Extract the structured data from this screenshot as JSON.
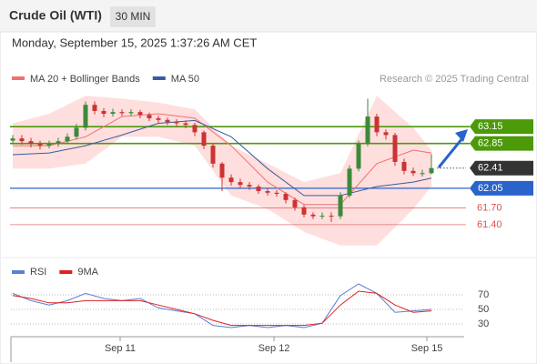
{
  "header": {
    "title": "Crude Oil (WTI)",
    "timeframe": "30 MIN",
    "timestamp": "Monday, September 15, 2025 1:37:26 AM CET"
  },
  "chart_data": [
    {
      "type": "candlestick",
      "source": "Research © 2025 Trading Central",
      "up_color": "#3b8a3b",
      "down_color": "#cc3333",
      "x": [
        0,
        1,
        2,
        3,
        4,
        5,
        6,
        7,
        8,
        9,
        10,
        11,
        12,
        13,
        14,
        15,
        16,
        17,
        18,
        19,
        20,
        21,
        22,
        23,
        24,
        25,
        26,
        27,
        28,
        29,
        30,
        31,
        32,
        33,
        34,
        35,
        36,
        37,
        38,
        39,
        40,
        41,
        42,
        43,
        44,
        45,
        46
      ],
      "open": [
        62.9,
        62.94,
        62.89,
        62.84,
        62.81,
        62.84,
        62.89,
        62.97,
        63.13,
        63.54,
        63.43,
        63.38,
        63.41,
        63.39,
        63.41,
        63.36,
        63.3,
        63.27,
        63.23,
        63.21,
        63.18,
        63.05,
        62.81,
        62.49,
        62.24,
        62.16,
        62.11,
        62.08,
        62.0,
        61.97,
        61.95,
        61.84,
        61.71,
        61.58,
        61.55,
        61.56,
        61.55,
        61.92,
        62.4,
        62.84,
        63.33,
        63.05,
        63.0,
        62.52,
        62.36,
        62.32,
        62.32
      ],
      "high": [
        63.0,
        63.0,
        62.95,
        62.9,
        62.9,
        62.95,
        63.03,
        63.2,
        63.6,
        63.6,
        63.48,
        63.47,
        63.46,
        63.46,
        63.45,
        63.4,
        63.35,
        63.31,
        63.28,
        63.26,
        63.22,
        63.08,
        62.85,
        62.52,
        62.3,
        62.22,
        62.16,
        62.12,
        62.05,
        62.02,
        61.98,
        61.88,
        61.75,
        61.62,
        61.62,
        61.62,
        61.98,
        62.46,
        62.9,
        63.65,
        63.38,
        63.1,
        63.04,
        62.58,
        62.42,
        62.38,
        62.66
      ],
      "low": [
        62.84,
        62.83,
        62.78,
        62.74,
        62.76,
        62.79,
        62.85,
        62.92,
        63.08,
        63.37,
        63.32,
        63.33,
        63.34,
        63.34,
        63.3,
        63.25,
        63.21,
        63.18,
        63.15,
        63.12,
        62.98,
        62.75,
        62.42,
        62.0,
        62.1,
        62.05,
        62.02,
        61.95,
        61.92,
        61.9,
        61.78,
        61.65,
        61.53,
        61.5,
        61.5,
        61.45,
        61.5,
        61.88,
        62.35,
        62.8,
        62.98,
        62.92,
        62.45,
        62.3,
        62.27,
        62.26,
        62.3
      ],
      "close": [
        62.94,
        62.89,
        62.84,
        62.81,
        62.84,
        62.89,
        62.97,
        63.13,
        63.54,
        63.43,
        63.38,
        63.41,
        63.39,
        63.41,
        63.36,
        63.3,
        63.27,
        63.23,
        63.21,
        63.18,
        63.05,
        62.81,
        62.49,
        62.24,
        62.16,
        62.11,
        62.08,
        62.0,
        61.97,
        61.95,
        61.84,
        61.71,
        61.58,
        61.55,
        61.56,
        61.55,
        61.92,
        62.4,
        62.84,
        63.33,
        63.05,
        63.0,
        62.52,
        62.36,
        62.32,
        62.32,
        62.41
      ],
      "series": [
        {
          "name": "MA 20 + Bollinger Bands",
          "color": "#f07070",
          "band_color": "#ffdede",
          "x": [
            0,
            4,
            8,
            12,
            16,
            20,
            24,
            28,
            32,
            36,
            40,
            44,
            46
          ],
          "values": [
            62.81,
            62.81,
            62.97,
            63.33,
            63.38,
            63.3,
            62.81,
            62.16,
            61.76,
            61.76,
            62.49,
            62.73,
            62.68
          ],
          "upper": [
            63.21,
            63.38,
            63.7,
            63.65,
            63.58,
            63.46,
            62.81,
            62.49,
            62.16,
            62.32,
            63.7,
            63.13,
            62.73
          ],
          "lower": [
            62.4,
            62.4,
            62.49,
            62.97,
            62.97,
            62.81,
            61.92,
            61.68,
            61.27,
            61.03,
            61.03,
            61.68,
            62.08
          ]
        },
        {
          "name": "MA 50",
          "color": "#3a5c9e",
          "x": [
            0,
            4,
            8,
            12,
            16,
            20,
            24,
            28,
            32,
            36,
            40,
            44,
            46
          ],
          "values": [
            62.65,
            62.68,
            62.81,
            63.0,
            63.21,
            63.26,
            62.97,
            62.4,
            61.92,
            61.92,
            62.08,
            62.16,
            62.23
          ]
        }
      ],
      "levels": [
        {
          "value": 63.15,
          "color": "#4c9a0a",
          "style": "box"
        },
        {
          "value": 62.85,
          "color": "#4c9a0a",
          "style": "box"
        },
        {
          "value": 62.41,
          "color": "#333333",
          "style": "price"
        },
        {
          "value": 62.05,
          "color": "#2a63c9",
          "style": "box"
        },
        {
          "value": 61.7,
          "label": "61.70",
          "color": "#e05050",
          "style": "text"
        },
        {
          "value": 61.4,
          "label": "61.40",
          "color": "#e05050",
          "style": "text"
        }
      ],
      "xlim": [
        -0.2,
        49.6
      ],
      "ylim": [
        60.83,
        64.03
      ],
      "xticks": [
        {
          "value": 11.8,
          "label": "Sep 11"
        },
        {
          "value": 28.7,
          "label": "Sep 12"
        },
        {
          "value": 45.5,
          "label": "Sep 15"
        }
      ]
    },
    {
      "type": "line",
      "x": [
        0,
        2,
        4,
        6,
        8,
        10,
        12,
        14,
        16,
        18,
        20,
        22,
        24,
        26,
        28,
        30,
        32,
        34,
        36,
        38,
        40,
        42,
        44,
        46
      ],
      "series": [
        {
          "name": "RSI",
          "color": "#5b7fd4",
          "values": [
            72,
            62,
            56,
            62,
            72,
            65,
            62,
            65,
            52,
            48,
            44,
            28,
            25,
            28,
            25,
            28,
            25,
            31,
            69,
            85,
            72,
            46,
            48,
            50
          ]
        },
        {
          "name": "9MA",
          "color": "#e02020",
          "values": [
            69,
            65,
            59,
            59,
            62,
            62,
            62,
            62,
            56,
            50,
            44,
            35,
            28,
            28,
            28,
            28,
            28,
            31,
            56,
            75,
            72,
            56,
            46,
            48
          ]
        }
      ],
      "xlim": [
        -0.2,
        49.6
      ],
      "ylim": [
        15,
        100
      ],
      "yticks": [
        30,
        50,
        70
      ]
    }
  ]
}
